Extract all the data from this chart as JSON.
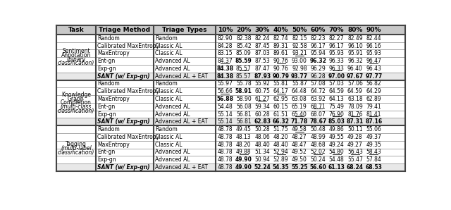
{
  "col_headers": [
    "Task",
    "Triage Method",
    "Triage Types",
    "10%",
    "20%",
    "30%",
    "40%",
    "50%",
    "60%",
    "70%",
    "80%",
    "90%"
  ],
  "sections": [
    {
      "task_lines": [
        [
          "Sentiment",
          false
        ],
        [
          "Annotation",
          false
        ],
        [
          "(binary",
          true
        ],
        [
          "classification)",
          true
        ]
      ],
      "rows": [
        {
          "method": "Random",
          "method_italic": false,
          "type": "Random",
          "values": [
            "82.90",
            "82.38",
            "82.24",
            "82.74",
            "82.15",
            "82.23",
            "82.27",
            "82.49",
            "82.44"
          ],
          "bold": [],
          "underline": [],
          "sant": false
        },
        {
          "method": "Calibrated MaxEntropy",
          "method_italic": false,
          "type": "Classic AL",
          "values": [
            "84.28",
            "85.42",
            "87.45",
            "89.31",
            "92.58",
            "96.17",
            "96.17",
            "96.10",
            "96.16"
          ],
          "bold": [],
          "underline": [],
          "sant": false
        },
        {
          "method": "MaxEntropy",
          "method_italic": false,
          "type": "Classic AL",
          "values": [
            "83.15",
            "85.09",
            "87.03",
            "89.61",
            "93.21",
            "95.94",
            "95.93",
            "95.91",
            "95.93"
          ],
          "bold": [],
          "underline": [
            4
          ],
          "sant": false
        },
        {
          "method": "Ent-gn",
          "method_italic": false,
          "type": "Advanced AL",
          "values": [
            "84.37",
            "85.59",
            "87.53",
            "90.76",
            "93.00",
            "96.32",
            "96.33",
            "96.32",
            "96.47"
          ],
          "bold": [
            1,
            5
          ],
          "underline": [
            0,
            3,
            8
          ],
          "sant": false
        },
        {
          "method": "Exp-gn",
          "method_italic": false,
          "type": "Advanced AL",
          "values": [
            "84.38",
            "85.57",
            "87.47",
            "90.76",
            "92.98",
            "96.29",
            "96.33",
            "96.40",
            "96.43"
          ],
          "bold": [
            0
          ],
          "underline": [
            1,
            6
          ],
          "sant": false
        },
        {
          "method": "SANT (w/ Exp-gn)",
          "method_italic": true,
          "type": "Advanced AL + EAT",
          "values": [
            "84.38",
            "85.57",
            "87.93",
            "90.79",
            "93.77",
            "96.28",
            "97.00",
            "97.67",
            "97.77"
          ],
          "bold": [
            0,
            2,
            3,
            4,
            6,
            7,
            8
          ],
          "underline": [],
          "sant": true
        }
      ]
    },
    {
      "task_lines": [
        [
          "Knowledge",
          false
        ],
        [
          "Graph",
          false
        ],
        [
          "Completion",
          false
        ],
        [
          "(multi-class",
          true
        ],
        [
          "classification)",
          true
        ]
      ],
      "rows": [
        {
          "method": "Random",
          "method_italic": false,
          "type": "Random",
          "values": [
            "55.97",
            "55.78",
            "55.92",
            "55.81",
            "55.87",
            "57.08",
            "57.03",
            "57.06",
            "56.82"
          ],
          "bold": [],
          "underline": [],
          "sant": false
        },
        {
          "method": "Calibrated MaxEntropy",
          "method_italic": false,
          "type": "Classic AL",
          "values": [
            "56.66",
            "58.91",
            "60.75",
            "64.17",
            "64.48",
            "64.72",
            "64.59",
            "64.59",
            "64.29"
          ],
          "bold": [
            1
          ],
          "underline": [
            0,
            3
          ],
          "sant": false
        },
        {
          "method": "MaxEntropy",
          "method_italic": false,
          "type": "Classic AL",
          "values": [
            "56.88",
            "58.90",
            "61.27",
            "62.95",
            "63.08",
            "63.92",
            "64.13",
            "63.18",
            "62.89"
          ],
          "bold": [
            0
          ],
          "underline": [
            2
          ],
          "sant": false
        },
        {
          "method": "Ent-gn",
          "method_italic": false,
          "type": "Advanced AL",
          "values": [
            "54.48",
            "56.08",
            "59.34",
            "60.15",
            "65.19",
            "68.71",
            "75.49",
            "78.09",
            "79.41"
          ],
          "bold": [],
          "underline": [
            5
          ],
          "sant": false
        },
        {
          "method": "Exp-gn",
          "method_italic": false,
          "type": "Advanced AL",
          "values": [
            "55.14",
            "56.81",
            "60.28",
            "61.51",
            "65.40",
            "68.07",
            "76.90",
            "81.76",
            "81.41"
          ],
          "bold": [],
          "underline": [
            4,
            6,
            7,
            8
          ],
          "sant": false
        },
        {
          "method": "SANT (w/ Exp-gn)",
          "method_italic": true,
          "type": "Advanced AL + EAT",
          "values": [
            "55.14",
            "56.81",
            "62.83",
            "66.32",
            "71.78",
            "78.67",
            "85.03",
            "87.31",
            "87.16"
          ],
          "bold": [
            2,
            3,
            4,
            5,
            6,
            7,
            8
          ],
          "underline": [],
          "sant": true
        }
      ]
    },
    {
      "task_lines": [
        [
          "Tagging",
          false
        ],
        [
          "(multi-label",
          true
        ],
        [
          "classification)",
          true
        ]
      ],
      "rows": [
        {
          "method": "Random",
          "method_italic": false,
          "type": "Random",
          "values": [
            "48.78",
            "49.45",
            "50.28",
            "51.75",
            "49.58",
            "50.48",
            "49.86",
            "50.11",
            "55.06"
          ],
          "bold": [],
          "underline": [
            4
          ],
          "sant": false
        },
        {
          "method": "Calibrated MaxEntropy",
          "method_italic": false,
          "type": "Classic AL",
          "values": [
            "48.78",
            "48.13",
            "48.06",
            "48.20",
            "48.27",
            "48.99",
            "49.55",
            "49.28",
            "49.37"
          ],
          "bold": [],
          "underline": [],
          "sant": false
        },
        {
          "method": "MaxEntropy",
          "method_italic": false,
          "type": "Classic AL",
          "values": [
            "48.78",
            "48.20",
            "48.40",
            "48.40",
            "48.47",
            "48.68",
            "49.24",
            "49.27",
            "49.35"
          ],
          "bold": [],
          "underline": [],
          "sant": false
        },
        {
          "method": "Ent-gn",
          "method_italic": false,
          "type": "Advanced AL",
          "values": [
            "48.78",
            "49.88",
            "51.34",
            "52.94",
            "49.52",
            "52.02",
            "54.80",
            "56.43",
            "58.43"
          ],
          "bold": [],
          "underline": [
            1,
            3,
            5,
            6,
            7,
            8
          ],
          "sant": false
        },
        {
          "method": "Exp-gn",
          "method_italic": false,
          "type": "Advanced AL",
          "values": [
            "48.78",
            "49.90",
            "50.94",
            "52.89",
            "49.50",
            "50.24",
            "54.48",
            "55.47",
            "57.84"
          ],
          "bold": [
            1
          ],
          "underline": [],
          "sant": false
        },
        {
          "method": "SANT (w/ Exp-gn)",
          "method_italic": true,
          "type": "Advanced AL + EAT",
          "values": [
            "48.78",
            "49.90",
            "52.24",
            "54.35",
            "55.25",
            "56.60",
            "61.13",
            "68.24",
            "68.53"
          ],
          "bold": [
            1,
            2,
            3,
            4,
            5,
            6,
            7,
            8
          ],
          "underline": [],
          "sant": true
        }
      ]
    }
  ],
  "header_bg": "#c8c8c8",
  "sant_bg": "#e8e8e8",
  "row_bg": "#ffffff",
  "border_color": "#444444",
  "thin_color": "#888888"
}
